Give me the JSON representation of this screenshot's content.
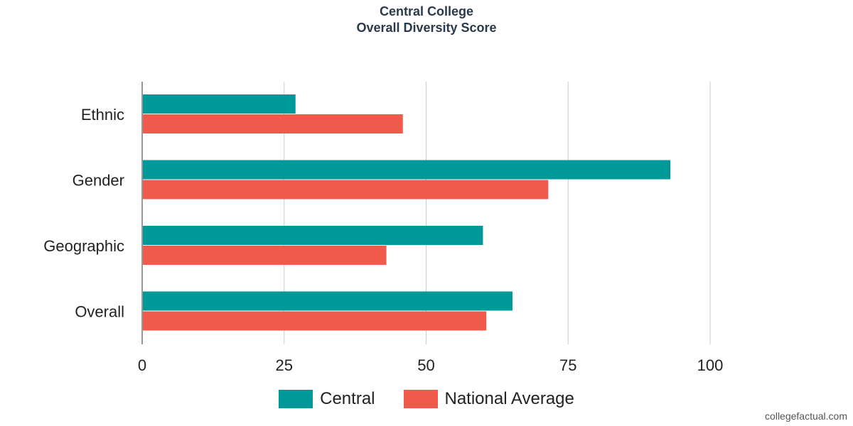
{
  "chart_data": {
    "type": "bar",
    "orientation": "horizontal",
    "title": "Central College",
    "subtitle": "Overall Diversity Score",
    "categories": [
      "Ethnic",
      "Gender",
      "Geographic",
      "Overall"
    ],
    "series": [
      {
        "name": "Central",
        "color": "#009999",
        "values": [
          27,
          93,
          60,
          65.2
        ]
      },
      {
        "name": "National Average",
        "color": "#f05a4a",
        "values": [
          45.9,
          71.5,
          43,
          60.6
        ]
      }
    ],
    "xlim": [
      0,
      100
    ],
    "xticks": [
      0,
      25,
      50,
      75,
      100
    ],
    "xlabel": "",
    "ylabel": "",
    "grid": true,
    "legend_position": "bottom"
  },
  "watermark": "collegefactual.com"
}
